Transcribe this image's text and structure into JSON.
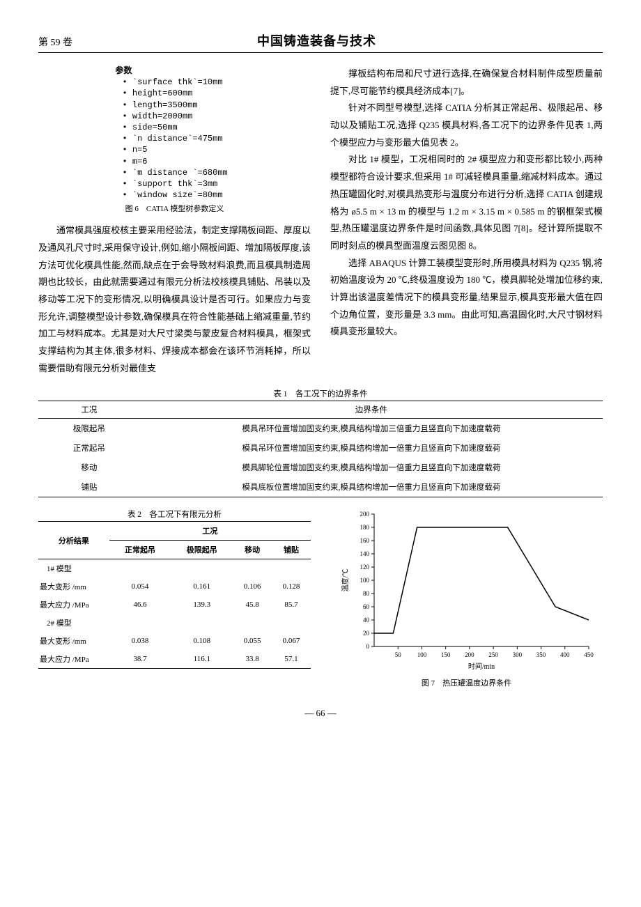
{
  "header": {
    "volume": "第 59 卷",
    "journal": "中国铸造装备与技术"
  },
  "paramTree": {
    "root": "参数",
    "items": [
      "`surface thk`=10mm",
      "height=600mm",
      "length=3500mm",
      "width=2000mm",
      "side=50mm",
      "`n distance`=475mm",
      "n=5",
      "m=6",
      "`m distance `=680mm",
      "`support thk`=3mm",
      "`window size`=80mm"
    ]
  },
  "fig6": "图 6　CATIA 模型树参数定义",
  "leftPara": "通常模具强度校核主要采用经验法，制定支撑隔板间距、厚度以及通风孔尺寸时,采用保守设计,例如,缩小隔板间距、增加隔板厚度,该方法可优化模具性能,然而,缺点在于会导致材料浪费,而且模具制造周期也比较长，由此就需要通过有限元分析法校核模具铺贴、吊装以及移动等工况下的变形情况,以明确模具设计是否可行。如果应力与变形允许,调整模型设计参数,确保模具在符合性能基础上缩减重量,节约加工与材料成本。尤其是对大尺寸梁类与蒙皮复合材料模具，框架式支撑结构为其主体,很多材料、焊接成本都会在该环节消耗掉，所以需要借助有限元分析对最佳支",
  "rightParas": [
    "撑板结构布局和尺寸进行选择,在确保复合材料制件成型质量前提下,尽可能节约模具经济成本[7]。",
    "针对不同型号模型,选择 CATIA 分析其正常起吊、极限起吊、移动以及铺贴工况,选择 Q235 模具材料,各工况下的边界条件见表 1,两个模型应力与变形最大值见表 2。",
    "对比 1# 模型，工况相同时的 2# 模型应力和变形都比较小,两种模型都符合设计要求,但采用 1# 可减轻模具重量,缩减材料成本。通过热压罐固化时,对模具热变形与温度分布进行分析,选择 CATIA 创建规格为 ø5.5 m × 13 m 的模型与 1.2 m × 3.15 m × 0.585 m 的钢框架式模型,热压罐温度边界条件是时间函数,具体见图 7[8]。经计算所提取不同时刻点的模具型面温度云图见图 8。",
    "选择 ABAQUS 计算工装模型变形时,所用模具材料为 Q235 钢,将初始温度设为 20 ℃,终极温度设为 180 ℃，模具脚轮处增加位移约束,计算出该温度差情况下的模具变形量,结果显示,模具变形最大值在四个边角位置，变形量是 3.3 mm。由此可知,高温固化时,大尺寸钢材料模具变形量较大。"
  ],
  "table1": {
    "caption": "表 1　各工况下的边界条件",
    "headers": [
      "工况",
      "边界条件"
    ],
    "rows": [
      [
        "极限起吊",
        "模具吊环位置增加固支约束,模具结构增加三倍重力且竖直向下加速度载荷"
      ],
      [
        "正常起吊",
        "模具吊环位置增加固支约束,模具结构增加一倍重力且竖直向下加速度载荷"
      ],
      [
        "移动",
        "模具脚轮位置增加固支约束,模具结构增加一倍重力且竖直向下加速度载荷"
      ],
      [
        "铺贴",
        "模具底板位置增加固支约束,模具结构增加一倍重力且竖直向下加速度载荷"
      ]
    ]
  },
  "table2": {
    "caption": "表 2　各工况下有限元分析",
    "colHeader1": "分析结果",
    "colGroup": "工况",
    "subHeaders": [
      "正常起吊",
      "极限起吊",
      "移动",
      "铺贴"
    ],
    "groups": [
      {
        "name": "1# 模型",
        "rows": [
          {
            "label": "最大变形 /mm",
            "vals": [
              "0.054",
              "0.161",
              "0.106",
              "0.128"
            ]
          },
          {
            "label": "最大应力 /MPa",
            "vals": [
              "46.6",
              "139.3",
              "45.8",
              "85.7"
            ]
          }
        ]
      },
      {
        "name": "2# 模型",
        "rows": [
          {
            "label": "最大变形 /mm",
            "vals": [
              "0.038",
              "0.108",
              "0.055",
              "0.067"
            ]
          },
          {
            "label": "最大应力 /MPa",
            "vals": [
              "38.7",
              "116.1",
              "33.8",
              "57.1"
            ]
          }
        ]
      }
    ]
  },
  "chart7": {
    "type": "line",
    "caption": "图 7　热压罐温度边界条件",
    "xlabel": "时间/min",
    "ylabel": "温度/℃",
    "xlim": [
      0,
      450
    ],
    "ylim": [
      0,
      200
    ],
    "xticks": [
      50,
      100,
      150,
      200,
      250,
      300,
      350,
      400,
      450
    ],
    "yticks": [
      0,
      20,
      40,
      60,
      80,
      100,
      120,
      140,
      160,
      180,
      200
    ],
    "line_color": "#000000",
    "background_color": "#ffffff",
    "axis_color": "#000000",
    "font_size_ticks": 9,
    "font_size_label": 10,
    "data": [
      {
        "x": 0,
        "y": 20
      },
      {
        "x": 40,
        "y": 20
      },
      {
        "x": 90,
        "y": 180
      },
      {
        "x": 280,
        "y": 180
      },
      {
        "x": 380,
        "y": 60
      },
      {
        "x": 450,
        "y": 40
      }
    ]
  },
  "pageNum": "— 66 —"
}
